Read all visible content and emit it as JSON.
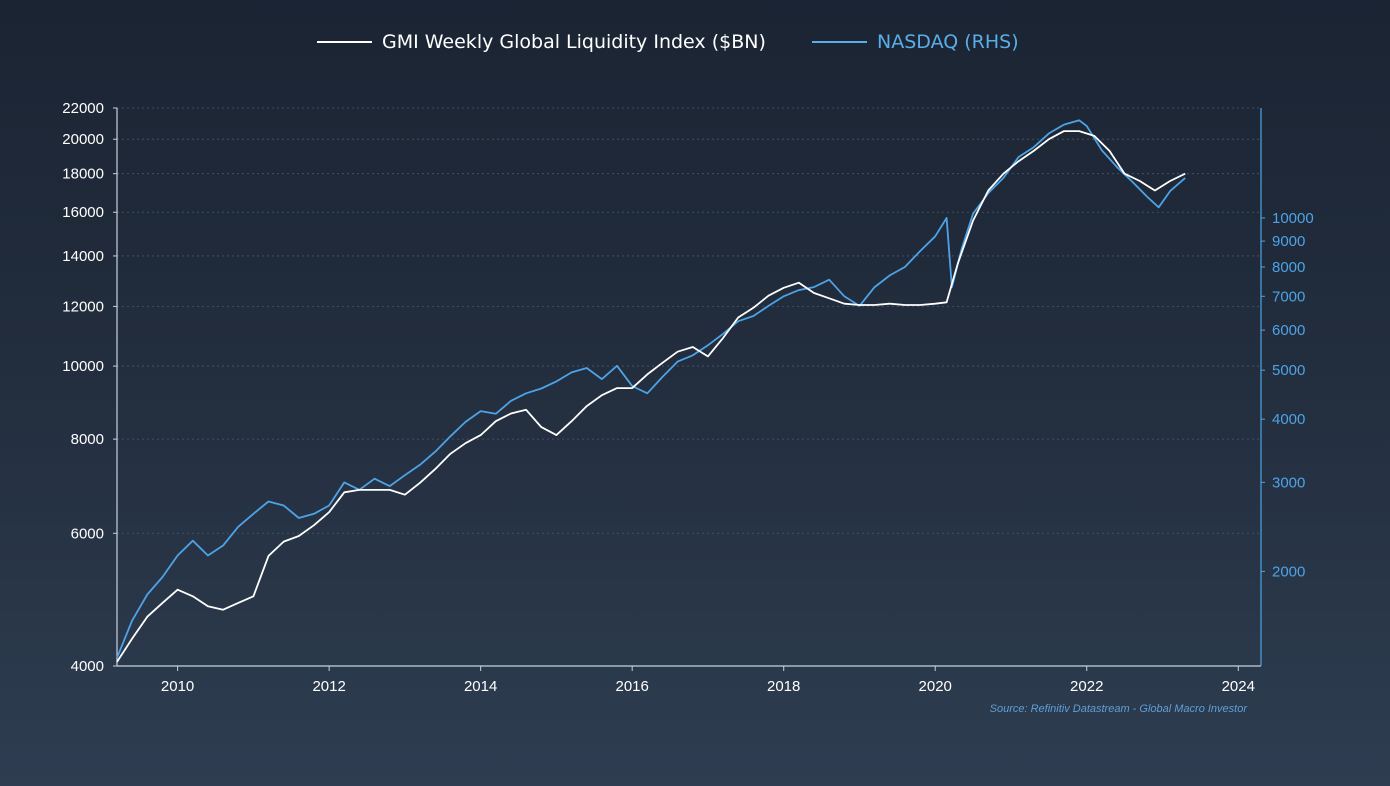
{
  "chart_data": {
    "type": "line",
    "title": "",
    "legend": [
      {
        "label": "GMI Weekly Global Liquidity Index ($BN)",
        "color": "#ffffff",
        "legend_color": "#ffffff"
      },
      {
        "label": "NASDAQ (RHS)",
        "color": "#4da3e6",
        "legend_color": "#5aaee8"
      }
    ],
    "x_axis": {
      "range": [
        2009.2,
        2024.3
      ],
      "ticks": [
        2010,
        2012,
        2014,
        2016,
        2018,
        2020,
        2022,
        2024
      ],
      "tick_labels": [
        "2010",
        "2012",
        "2014",
        "2016",
        "2018",
        "2020",
        "2022",
        "2024"
      ],
      "scale": "linear"
    },
    "y_left": {
      "scale": "log",
      "range": [
        4000,
        22000
      ],
      "ticks": [
        4000,
        6000,
        8000,
        10000,
        12000,
        14000,
        16000,
        18000,
        20000,
        22000
      ],
      "tick_labels": [
        "4000",
        "6000",
        "8000",
        "10000",
        "12000",
        "14000",
        "16000",
        "18000",
        "20000",
        "22000"
      ],
      "grid": true
    },
    "y_right": {
      "scale": "log",
      "range": [
        1300,
        16500
      ],
      "ticks": [
        2000,
        3000,
        4000,
        5000,
        6000,
        7000,
        8000,
        9000,
        10000
      ],
      "tick_labels": [
        "2000",
        "3000",
        "4000",
        "5000",
        "6000",
        "7000",
        "8000",
        "9000",
        "10000"
      ],
      "color": "#4da3e6"
    },
    "series": [
      {
        "name": "GMI Weekly Global Liquidity Index ($BN)",
        "axis": "left",
        "color": "#ffffff",
        "x": [
          2009.2,
          2009.4,
          2009.6,
          2009.8,
          2010.0,
          2010.2,
          2010.4,
          2010.6,
          2010.8,
          2011.0,
          2011.2,
          2011.4,
          2011.6,
          2011.8,
          2012.0,
          2012.2,
          2012.4,
          2012.6,
          2012.8,
          2013.0,
          2013.2,
          2013.4,
          2013.6,
          2013.8,
          2014.0,
          2014.2,
          2014.4,
          2014.6,
          2014.8,
          2015.0,
          2015.2,
          2015.4,
          2015.6,
          2015.8,
          2016.0,
          2016.2,
          2016.4,
          2016.6,
          2016.8,
          2017.0,
          2017.2,
          2017.4,
          2017.6,
          2017.8,
          2018.0,
          2018.2,
          2018.4,
          2018.6,
          2018.8,
          2019.0,
          2019.2,
          2019.4,
          2019.6,
          2019.8,
          2020.0,
          2020.15,
          2020.3,
          2020.5,
          2020.7,
          2020.9,
          2021.1,
          2021.3,
          2021.5,
          2021.7,
          2021.9,
          2022.1,
          2022.3,
          2022.5,
          2022.7,
          2022.9,
          2023.1,
          2023.3
        ],
        "values": [
          4050,
          4350,
          4650,
          4850,
          5050,
          4950,
          4800,
          4750,
          4850,
          4950,
          5600,
          5850,
          5950,
          6150,
          6400,
          6800,
          6850,
          6850,
          6850,
          6750,
          7000,
          7300,
          7650,
          7900,
          8100,
          8450,
          8650,
          8750,
          8300,
          8100,
          8450,
          8850,
          9150,
          9350,
          9350,
          9750,
          10100,
          10450,
          10600,
          10300,
          10900,
          11600,
          11950,
          12400,
          12700,
          12900,
          12500,
          12300,
          12100,
          12050,
          12050,
          12100,
          12050,
          12050,
          12100,
          12150,
          13700,
          15600,
          17100,
          18000,
          18700,
          19300,
          20000,
          20500,
          20500,
          20200,
          19300,
          18000,
          17600,
          17100,
          17600,
          18000
        ]
      },
      {
        "name": "NASDAQ (RHS)",
        "axis": "right",
        "color": "#4da3e6",
        "x": [
          2009.2,
          2009.4,
          2009.6,
          2009.8,
          2010.0,
          2010.2,
          2010.4,
          2010.6,
          2010.8,
          2011.0,
          2011.2,
          2011.4,
          2011.6,
          2011.8,
          2012.0,
          2012.2,
          2012.4,
          2012.6,
          2012.8,
          2013.0,
          2013.2,
          2013.4,
          2013.6,
          2013.8,
          2014.0,
          2014.2,
          2014.4,
          2014.6,
          2014.8,
          2015.0,
          2015.2,
          2015.4,
          2015.6,
          2015.8,
          2016.0,
          2016.2,
          2016.4,
          2016.6,
          2016.8,
          2017.0,
          2017.2,
          2017.4,
          2017.6,
          2017.8,
          2018.0,
          2018.2,
          2018.4,
          2018.6,
          2018.8,
          2019.0,
          2019.2,
          2019.4,
          2019.6,
          2019.8,
          2020.0,
          2020.15,
          2020.22,
          2020.35,
          2020.5,
          2020.7,
          2020.9,
          2021.1,
          2021.3,
          2021.5,
          2021.7,
          2021.9,
          2022.0,
          2022.2,
          2022.4,
          2022.6,
          2022.8,
          2022.95,
          2023.1,
          2023.3
        ],
        "values": [
          1350,
          1600,
          1800,
          1950,
          2150,
          2300,
          2150,
          2250,
          2450,
          2600,
          2750,
          2700,
          2550,
          2600,
          2700,
          3000,
          2900,
          3050,
          2950,
          3100,
          3250,
          3450,
          3700,
          3950,
          4150,
          4100,
          4350,
          4500,
          4600,
          4750,
          4950,
          5050,
          4800,
          5100,
          4650,
          4500,
          4850,
          5200,
          5350,
          5600,
          5900,
          6250,
          6400,
          6700,
          7000,
          7200,
          7300,
          7550,
          7000,
          6700,
          7300,
          7700,
          8000,
          8600,
          9200,
          10000,
          7300,
          8700,
          10200,
          11200,
          12000,
          13200,
          13800,
          14700,
          15300,
          15600,
          15200,
          13600,
          12600,
          11800,
          11000,
          10500,
          11300,
          12000
        ]
      }
    ],
    "grid": true,
    "legend_position": "top-center",
    "source": "Source: Refinitiv Datastream - Global Macro Investor"
  }
}
